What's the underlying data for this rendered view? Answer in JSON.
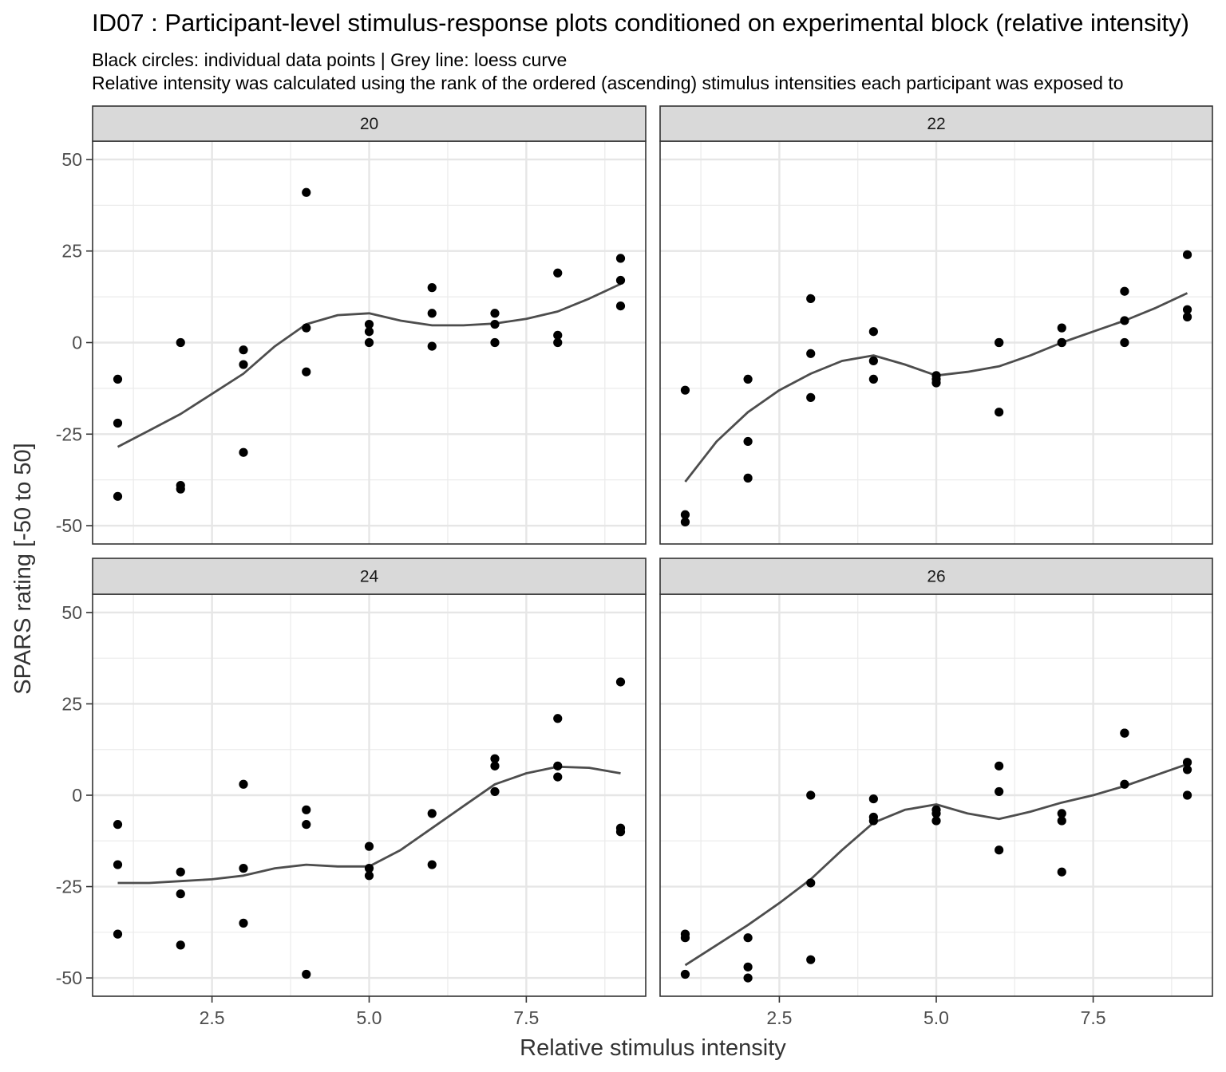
{
  "chart_data": {
    "type": "scatter",
    "title": "ID07 : Participant-level stimulus-response plots conditioned on experimental block (relative intensity)",
    "subtitle_lines": [
      "Black circles: individual data points | Grey line: loess curve",
      "Relative intensity was calculated using the rank of the ordered (ascending) stimulus intensities each participant was exposed to"
    ],
    "xlabel": "Relative stimulus intensity",
    "ylabel": "SPARS rating [-50 to 50]",
    "xlim": [
      0.6,
      9.4
    ],
    "ylim": [
      -55,
      55
    ],
    "x_ticks": [
      2.5,
      5.0,
      7.5
    ],
    "x_tick_labels": [
      "2.5",
      "5.0",
      "7.5"
    ],
    "y_ticks": [
      50,
      25,
      0,
      -25,
      -50
    ],
    "y_tick_labels": [
      "50",
      "25",
      "0",
      "-25",
      "-50"
    ],
    "grid": true,
    "point_color": "#000000",
    "line_color": "#4d4d4d",
    "panels": [
      {
        "label": "20",
        "points": [
          [
            1,
            -10
          ],
          [
            1,
            -22
          ],
          [
            1,
            -42
          ],
          [
            2,
            0
          ],
          [
            2,
            -39
          ],
          [
            2,
            -40
          ],
          [
            3,
            -2
          ],
          [
            3,
            -6
          ],
          [
            3,
            -30
          ],
          [
            4,
            41
          ],
          [
            4,
            4
          ],
          [
            4,
            -8
          ],
          [
            5,
            5
          ],
          [
            5,
            3
          ],
          [
            5,
            0
          ],
          [
            6,
            15
          ],
          [
            6,
            8
          ],
          [
            6,
            -1
          ],
          [
            7,
            8
          ],
          [
            7,
            5
          ],
          [
            7,
            0
          ],
          [
            8,
            19
          ],
          [
            8,
            2
          ],
          [
            8,
            0
          ],
          [
            9,
            23
          ],
          [
            9,
            17
          ],
          [
            9,
            10
          ]
        ],
        "loess": [
          [
            1,
            -28.5
          ],
          [
            1.5,
            -24
          ],
          [
            2,
            -19.5
          ],
          [
            2.5,
            -14
          ],
          [
            3,
            -8.5
          ],
          [
            3.5,
            -1
          ],
          [
            4,
            5
          ],
          [
            4.5,
            7.5
          ],
          [
            5,
            8
          ],
          [
            5.5,
            6
          ],
          [
            6,
            4.7
          ],
          [
            6.5,
            4.7
          ],
          [
            7,
            5.2
          ],
          [
            7.5,
            6.5
          ],
          [
            8,
            8.5
          ],
          [
            8.5,
            12
          ],
          [
            9,
            16
          ]
        ]
      },
      {
        "label": "22",
        "points": [
          [
            1,
            -13
          ],
          [
            1,
            -47
          ],
          [
            1,
            -49
          ],
          [
            2,
            -10
          ],
          [
            2,
            -27
          ],
          [
            2,
            -37
          ],
          [
            3,
            12
          ],
          [
            3,
            -3
          ],
          [
            3,
            -15
          ],
          [
            4,
            3
          ],
          [
            4,
            -5
          ],
          [
            4,
            -10
          ],
          [
            5,
            -9
          ],
          [
            5,
            -10
          ],
          [
            5,
            -11
          ],
          [
            6,
            0
          ],
          [
            6,
            0
          ],
          [
            6,
            -19
          ],
          [
            7,
            4
          ],
          [
            7,
            0
          ],
          [
            7,
            0
          ],
          [
            8,
            14
          ],
          [
            8,
            6
          ],
          [
            8,
            0
          ],
          [
            9,
            24
          ],
          [
            9,
            9
          ],
          [
            9,
            7
          ]
        ],
        "loess": [
          [
            1,
            -38
          ],
          [
            1.5,
            -27
          ],
          [
            2,
            -19
          ],
          [
            2.5,
            -13
          ],
          [
            3,
            -8.5
          ],
          [
            3.5,
            -5
          ],
          [
            4,
            -3.5
          ],
          [
            4.5,
            -6
          ],
          [
            5,
            -9
          ],
          [
            5.5,
            -8
          ],
          [
            6,
            -6.5
          ],
          [
            6.5,
            -3.5
          ],
          [
            7,
            0
          ],
          [
            7.5,
            3
          ],
          [
            8,
            6
          ],
          [
            8.5,
            9.5
          ],
          [
            9,
            13.5
          ]
        ]
      },
      {
        "label": "24",
        "points": [
          [
            1,
            -8
          ],
          [
            1,
            -19
          ],
          [
            1,
            -38
          ],
          [
            2,
            -21
          ],
          [
            2,
            -27
          ],
          [
            2,
            -41
          ],
          [
            3,
            3
          ],
          [
            3,
            -20
          ],
          [
            3,
            -35
          ],
          [
            4,
            -4
          ],
          [
            4,
            -8
          ],
          [
            4,
            -49
          ],
          [
            5,
            -14
          ],
          [
            5,
            -20
          ],
          [
            5,
            -22
          ],
          [
            6,
            -5
          ],
          [
            6,
            -19
          ],
          [
            7,
            10
          ],
          [
            7,
            8
          ],
          [
            7,
            1
          ],
          [
            8,
            21
          ],
          [
            8,
            8
          ],
          [
            8,
            5
          ],
          [
            9,
            31
          ],
          [
            9,
            -9
          ],
          [
            9,
            -10
          ]
        ],
        "loess": [
          [
            1,
            -24
          ],
          [
            1.5,
            -24
          ],
          [
            2,
            -23.5
          ],
          [
            2.5,
            -23
          ],
          [
            3,
            -22
          ],
          [
            3.5,
            -20
          ],
          [
            4,
            -19
          ],
          [
            4.5,
            -19.5
          ],
          [
            5,
            -19.5
          ],
          [
            5.5,
            -15
          ],
          [
            6,
            -9
          ],
          [
            6.5,
            -3
          ],
          [
            7,
            3
          ],
          [
            7.5,
            6
          ],
          [
            8,
            7.8
          ],
          [
            8.5,
            7.5
          ],
          [
            9,
            6
          ]
        ]
      },
      {
        "label": "26",
        "points": [
          [
            1,
            -38
          ],
          [
            1,
            -39
          ],
          [
            1,
            -49
          ],
          [
            2,
            -39
          ],
          [
            2,
            -47
          ],
          [
            2,
            -50
          ],
          [
            3,
            0
          ],
          [
            3,
            -24
          ],
          [
            3,
            -45
          ],
          [
            4,
            -1
          ],
          [
            4,
            -6
          ],
          [
            4,
            -7
          ],
          [
            5,
            -4
          ],
          [
            5,
            -5
          ],
          [
            5,
            -7
          ],
          [
            6,
            8
          ],
          [
            6,
            1
          ],
          [
            6,
            -15
          ],
          [
            7,
            -5
          ],
          [
            7,
            -7
          ],
          [
            7,
            -21
          ],
          [
            8,
            17
          ],
          [
            8,
            17
          ],
          [
            8,
            3
          ],
          [
            9,
            9
          ],
          [
            9,
            7
          ],
          [
            9,
            0
          ]
        ],
        "loess": [
          [
            1,
            -46.5
          ],
          [
            1.5,
            -41
          ],
          [
            2,
            -35.5
          ],
          [
            2.5,
            -29.5
          ],
          [
            3,
            -23
          ],
          [
            3.5,
            -15
          ],
          [
            4,
            -7.5
          ],
          [
            4.5,
            -4
          ],
          [
            5,
            -2.5
          ],
          [
            5.5,
            -5
          ],
          [
            6,
            -6.5
          ],
          [
            6.5,
            -4.5
          ],
          [
            7,
            -2
          ],
          [
            7.5,
            0
          ],
          [
            8,
            2.5
          ],
          [
            8.5,
            5.5
          ],
          [
            9,
            8.5
          ]
        ]
      }
    ]
  }
}
